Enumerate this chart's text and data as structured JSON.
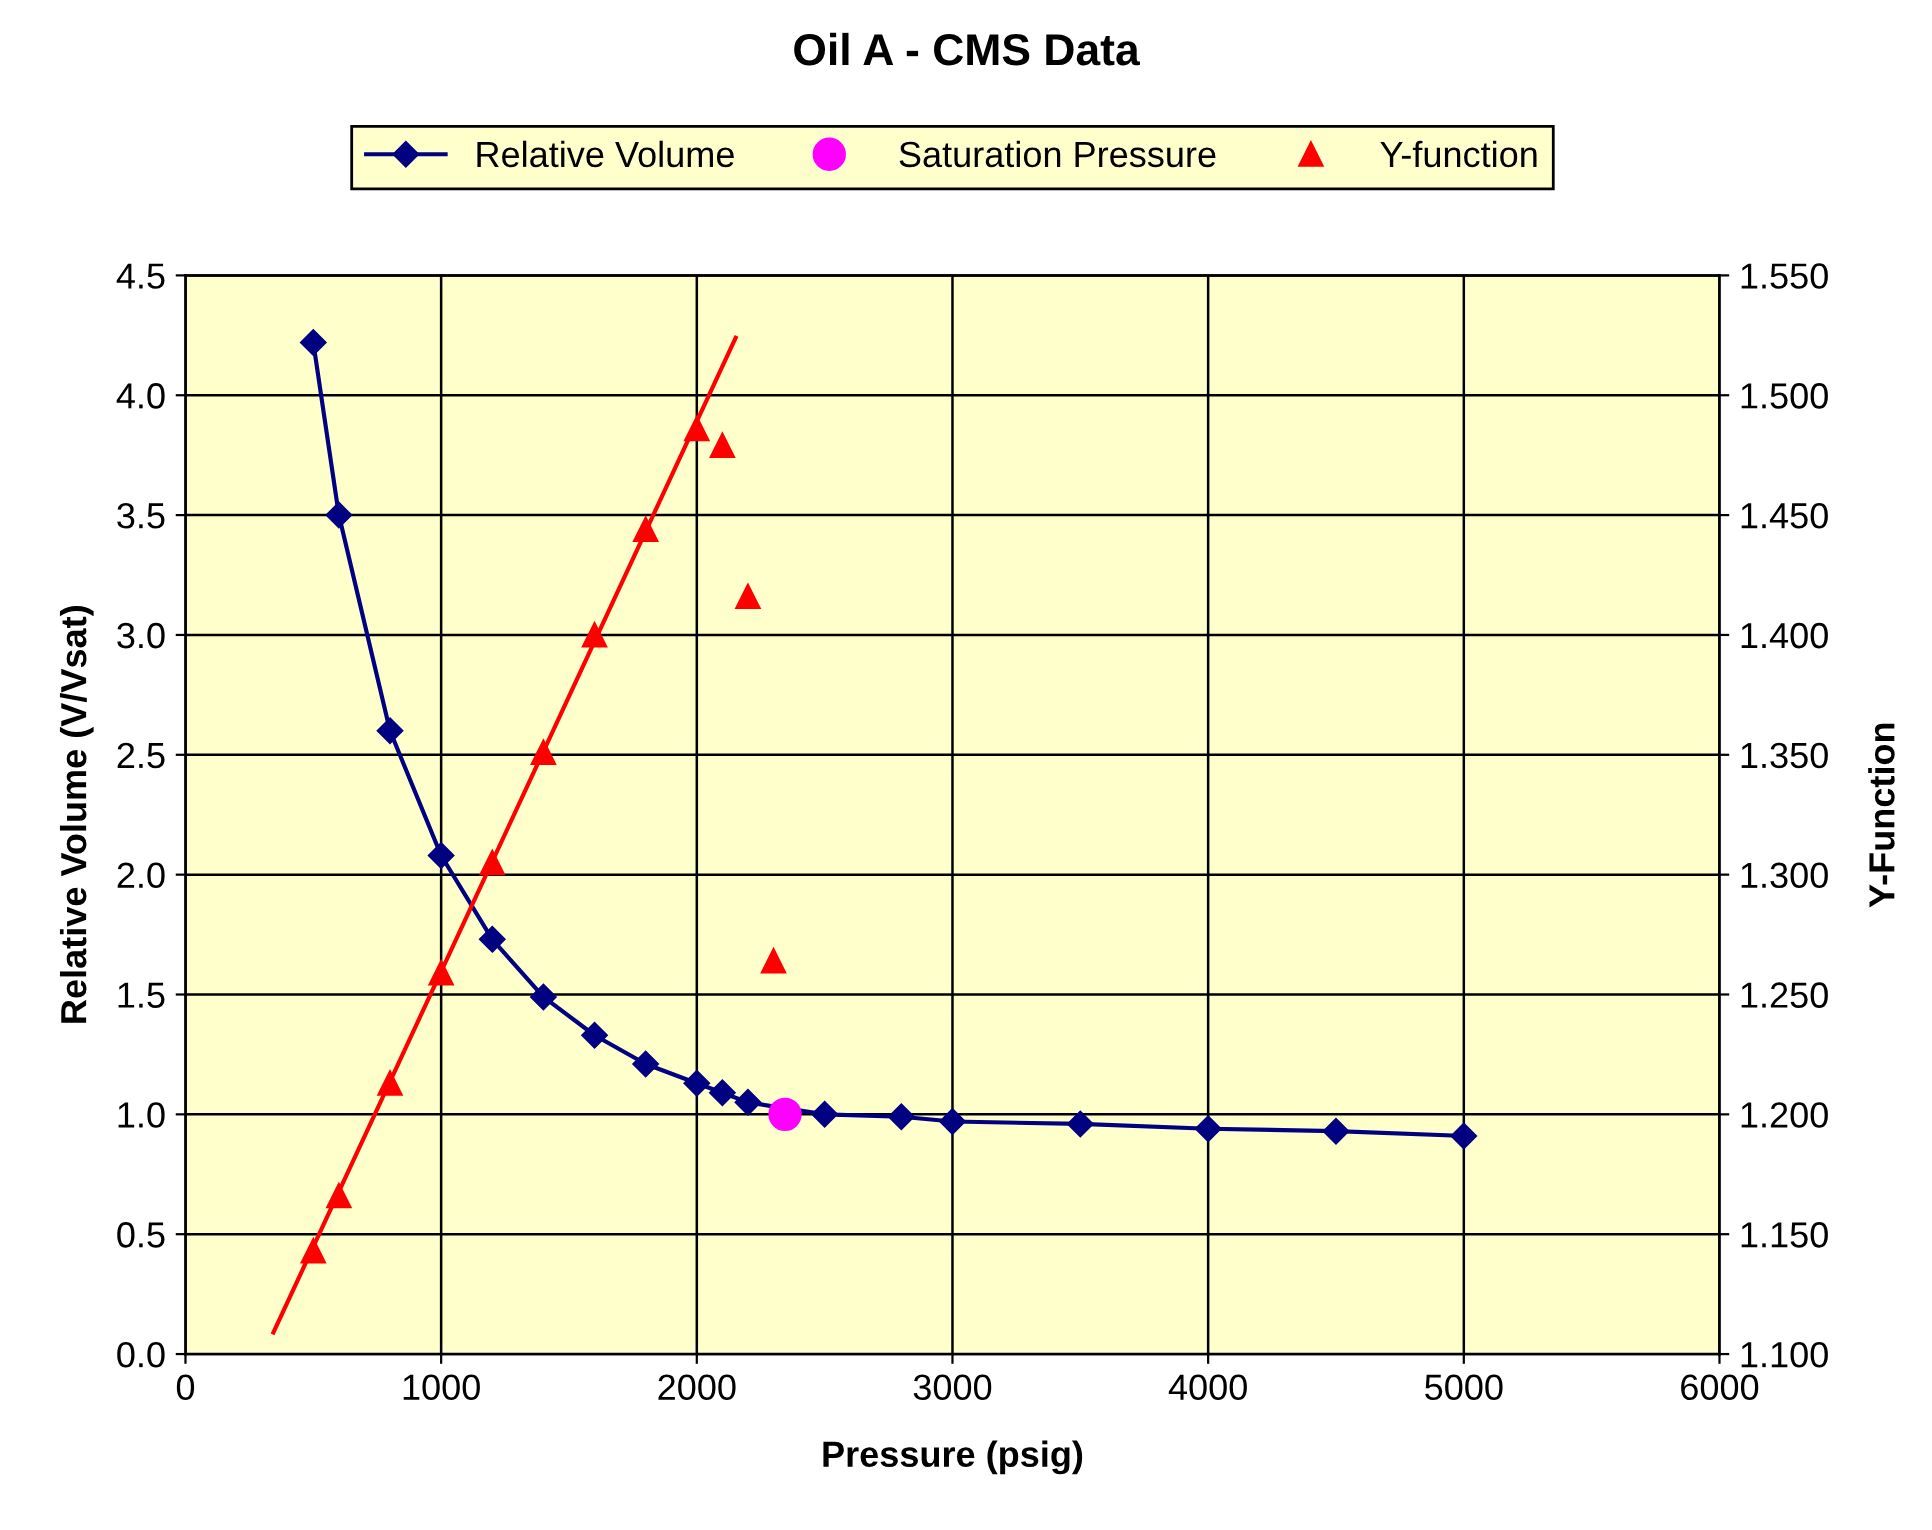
{
  "chart_data": {
    "type": "line",
    "title": "Oil A - CMS Data",
    "xlabel": "Pressure (psig)",
    "ylabel": "Relative Volume (V/Vsat)",
    "y2label": "Y-Function",
    "xlim": [
      0,
      6000
    ],
    "xticks": [
      0,
      1000,
      2000,
      3000,
      4000,
      5000,
      6000
    ],
    "ylim": [
      0,
      4.5
    ],
    "yticks": [
      {
        "value": 0,
        "label": "0.0"
      },
      {
        "value": 0.5,
        "label": "0.5"
      },
      {
        "value": 1,
        "label": "1.0"
      },
      {
        "value": 1.5,
        "label": "1.5"
      },
      {
        "value": 2,
        "label": "2.0"
      },
      {
        "value": 2.5,
        "label": "2.5"
      },
      {
        "value": 3,
        "label": "3.0"
      },
      {
        "value": 3.5,
        "label": "3.5"
      },
      {
        "value": 4,
        "label": "4.0"
      },
      {
        "value": 4.5,
        "label": "4.5"
      }
    ],
    "y2lim": [
      1.1,
      1.55
    ],
    "y2ticks": [
      {
        "value": 1.1,
        "label": "1.100"
      },
      {
        "value": 1.15,
        "label": "1.150"
      },
      {
        "value": 1.2,
        "label": "1.200"
      },
      {
        "value": 1.25,
        "label": "1.250"
      },
      {
        "value": 1.3,
        "label": "1.300"
      },
      {
        "value": 1.35,
        "label": "1.350"
      },
      {
        "value": 1.4,
        "label": "1.400"
      },
      {
        "value": 1.45,
        "label": "1.450"
      },
      {
        "value": 1.5,
        "label": "1.500"
      },
      {
        "value": 1.55,
        "label": "1.550"
      }
    ],
    "grid": true,
    "legend": "top",
    "series": [
      {
        "name": "Relative Volume",
        "color": "#000080",
        "marker": "diamond",
        "x": [
          500,
          600,
          800,
          1000,
          1200,
          1400,
          1600,
          1800,
          2000,
          2100,
          2200,
          2500,
          2800,
          3000,
          3500,
          4000,
          4500,
          5000
        ],
        "values": [
          4.22,
          3.5,
          2.6,
          2.08,
          1.73,
          1.49,
          1.33,
          1.21,
          1.13,
          1.09,
          1.05,
          1.0,
          0.99,
          0.97,
          0.96,
          0.94,
          0.93,
          0.91
        ]
      },
      {
        "name": "Saturation Pressure",
        "type": "scatter",
        "color": "#ff00ff",
        "marker": "circle",
        "x": [
          2345
        ],
        "values": [
          1.0
        ]
      },
      {
        "name": "Y-function",
        "type": "scatter",
        "color": "#ff0000",
        "marker": "triangle",
        "axis": "y2",
        "x": [
          500,
          600,
          800,
          1000,
          1200,
          1400,
          1600,
          1800,
          2000,
          2100,
          2200,
          2300
        ],
        "values": [
          1.143,
          1.166,
          1.213,
          1.259,
          1.305,
          1.351,
          1.4,
          1.444,
          1.486,
          1.479,
          1.416,
          1.264
        ]
      },
      {
        "color": "#ff0000",
        "marker": "none",
        "axis": "y2",
        "x": [
          344,
          2152
        ],
        "values": [
          1.109,
          1.524
        ]
      }
    ]
  }
}
